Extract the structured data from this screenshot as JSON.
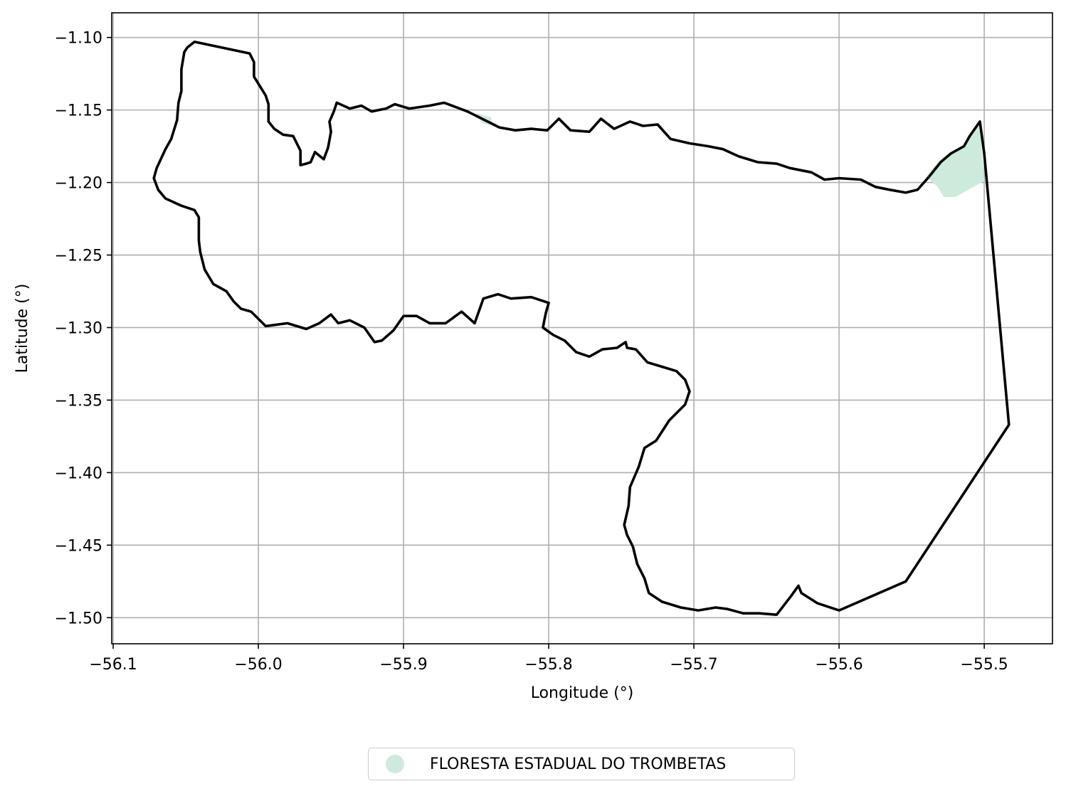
{
  "figure": {
    "xlabel": "Longitude (°)",
    "ylabel": "Latitude (°)",
    "xticks": [
      -56.1,
      -56.0,
      -55.9,
      -55.8,
      -55.7,
      -55.6,
      -55.5
    ],
    "xtick_labels": [
      "−56.1",
      "−56.0",
      "−55.9",
      "−55.8",
      "−55.7",
      "−55.6",
      "−55.5"
    ],
    "yticks": [
      -1.1,
      -1.15,
      -1.2,
      -1.25,
      -1.3,
      -1.35,
      -1.4,
      -1.45,
      -1.5
    ],
    "ytick_labels": [
      "−1.10",
      "−1.15",
      "−1.20",
      "−1.25",
      "−1.30",
      "−1.35",
      "−1.40",
      "−1.45",
      "−1.50"
    ],
    "xlim": [
      -56.101,
      -55.453
    ],
    "ylim": [
      -1.518,
      -1.083
    ],
    "grid": true
  },
  "legend": {
    "label": "FLORESTA ESTADUAL DO TROMBETAS",
    "placement": "bottom-center",
    "color": "#cdebdd"
  },
  "chart_data": {
    "type": "map",
    "layers": [
      {
        "kind": "boundary",
        "color": "#000000",
        "coordinates": [
          [
            -56.044,
            -1.103
          ],
          [
            -56.006,
            -1.111
          ],
          [
            -56.003,
            -1.117
          ],
          [
            -56.003,
            -1.127
          ],
          [
            -55.995,
            -1.14
          ],
          [
            -55.993,
            -1.146
          ],
          [
            -55.993,
            -1.158
          ],
          [
            -55.989,
            -1.163
          ],
          [
            -55.983,
            -1.167
          ],
          [
            -55.976,
            -1.168
          ],
          [
            -55.973,
            -1.174
          ],
          [
            -55.971,
            -1.178
          ],
          [
            -55.971,
            -1.188
          ],
          [
            -55.967,
            -1.187
          ],
          [
            -55.964,
            -1.186
          ],
          [
            -55.961,
            -1.179
          ],
          [
            -55.955,
            -1.184
          ],
          [
            -55.952,
            -1.176
          ],
          [
            -55.95,
            -1.165
          ],
          [
            -55.951,
            -1.158
          ],
          [
            -55.948,
            -1.151
          ],
          [
            -55.946,
            -1.145
          ],
          [
            -55.937,
            -1.149
          ],
          [
            -55.929,
            -1.147
          ],
          [
            -55.922,
            -1.151
          ],
          [
            -55.912,
            -1.149
          ],
          [
            -55.906,
            -1.146
          ],
          [
            -55.896,
            -1.149
          ],
          [
            -55.882,
            -1.147
          ],
          [
            -55.872,
            -1.145
          ],
          [
            -55.856,
            -1.151
          ],
          [
            -55.844,
            -1.157
          ],
          [
            -55.834,
            -1.162
          ],
          [
            -55.823,
            -1.164
          ],
          [
            -55.812,
            -1.163
          ],
          [
            -55.801,
            -1.164
          ],
          [
            -55.793,
            -1.156
          ],
          [
            -55.785,
            -1.164
          ],
          [
            -55.772,
            -1.165
          ],
          [
            -55.764,
            -1.156
          ],
          [
            -55.755,
            -1.163
          ],
          [
            -55.744,
            -1.158
          ],
          [
            -55.735,
            -1.161
          ],
          [
            -55.725,
            -1.16
          ],
          [
            -55.716,
            -1.17
          ],
          [
            -55.703,
            -1.173
          ],
          [
            -55.69,
            -1.175
          ],
          [
            -55.68,
            -1.177
          ],
          [
            -55.669,
            -1.182
          ],
          [
            -55.656,
            -1.186
          ],
          [
            -55.643,
            -1.187
          ],
          [
            -55.634,
            -1.19
          ],
          [
            -55.619,
            -1.193
          ],
          [
            -55.61,
            -1.198
          ],
          [
            -55.6,
            -1.197
          ],
          [
            -55.585,
            -1.198
          ],
          [
            -55.575,
            -1.203
          ],
          [
            -55.565,
            -1.205
          ],
          [
            -55.554,
            -1.207
          ],
          [
            -55.546,
            -1.205
          ],
          [
            -55.538,
            -1.196
          ],
          [
            -55.53,
            -1.186
          ],
          [
            -55.523,
            -1.18
          ],
          [
            -55.514,
            -1.175
          ],
          [
            -55.51,
            -1.168
          ],
          [
            -55.503,
            -1.158
          ],
          [
            -55.5,
            -1.18
          ],
          [
            -55.483,
            -1.367
          ],
          [
            -55.554,
            -1.475
          ],
          [
            -55.6,
            -1.495
          ],
          [
            -55.615,
            -1.49
          ],
          [
            -55.626,
            -1.483
          ],
          [
            -55.628,
            -1.478
          ],
          [
            -55.633,
            -1.485
          ],
          [
            -55.643,
            -1.498
          ],
          [
            -55.655,
            -1.497
          ],
          [
            -55.666,
            -1.497
          ],
          [
            -55.677,
            -1.494
          ],
          [
            -55.685,
            -1.493
          ],
          [
            -55.697,
            -1.495
          ],
          [
            -55.709,
            -1.493
          ],
          [
            -55.722,
            -1.489
          ],
          [
            -55.731,
            -1.483
          ],
          [
            -55.734,
            -1.473
          ],
          [
            -55.739,
            -1.463
          ],
          [
            -55.742,
            -1.451
          ],
          [
            -55.746,
            -1.443
          ],
          [
            -55.748,
            -1.436
          ],
          [
            -55.745,
            -1.423
          ],
          [
            -55.744,
            -1.41
          ],
          [
            -55.738,
            -1.396
          ],
          [
            -55.734,
            -1.383
          ],
          [
            -55.726,
            -1.378
          ],
          [
            -55.717,
            -1.364
          ],
          [
            -55.706,
            -1.353
          ],
          [
            -55.703,
            -1.344
          ],
          [
            -55.706,
            -1.336
          ],
          [
            -55.712,
            -1.33
          ],
          [
            -55.722,
            -1.327
          ],
          [
            -55.732,
            -1.324
          ],
          [
            -55.74,
            -1.315
          ],
          [
            -55.746,
            -1.314
          ],
          [
            -55.747,
            -1.31
          ],
          [
            -55.753,
            -1.314
          ],
          [
            -55.763,
            -1.315
          ],
          [
            -55.772,
            -1.32
          ],
          [
            -55.781,
            -1.317
          ],
          [
            -55.789,
            -1.309
          ],
          [
            -55.797,
            -1.305
          ],
          [
            -55.804,
            -1.3
          ],
          [
            -55.802,
            -1.29
          ],
          [
            -55.8,
            -1.283
          ],
          [
            -55.812,
            -1.279
          ],
          [
            -55.826,
            -1.28
          ],
          [
            -55.835,
            -1.277
          ],
          [
            -55.845,
            -1.28
          ],
          [
            -55.851,
            -1.297
          ],
          [
            -55.86,
            -1.289
          ],
          [
            -55.871,
            -1.297
          ],
          [
            -55.882,
            -1.297
          ],
          [
            -55.891,
            -1.292
          ],
          [
            -55.9,
            -1.292
          ],
          [
            -55.907,
            -1.302
          ],
          [
            -55.915,
            -1.309
          ],
          [
            -55.92,
            -1.31
          ],
          [
            -55.927,
            -1.3
          ],
          [
            -55.937,
            -1.295
          ],
          [
            -55.945,
            -1.297
          ],
          [
            -55.95,
            -1.291
          ],
          [
            -55.958,
            -1.297
          ],
          [
            -55.967,
            -1.301
          ],
          [
            -55.98,
            -1.297
          ],
          [
            -55.995,
            -1.299
          ],
          [
            -56.005,
            -1.289
          ],
          [
            -56.012,
            -1.287
          ],
          [
            -56.017,
            -1.282
          ],
          [
            -56.022,
            -1.275
          ],
          [
            -56.031,
            -1.27
          ],
          [
            -56.037,
            -1.26
          ],
          [
            -56.04,
            -1.248
          ],
          [
            -56.041,
            -1.24
          ],
          [
            -56.041,
            -1.224
          ],
          [
            -56.044,
            -1.219
          ],
          [
            -56.053,
            -1.216
          ],
          [
            -56.064,
            -1.211
          ],
          [
            -56.069,
            -1.205
          ],
          [
            -56.072,
            -1.197
          ],
          [
            -56.07,
            -1.19
          ],
          [
            -56.064,
            -1.177
          ],
          [
            -56.06,
            -1.17
          ],
          [
            -56.056,
            -1.157
          ],
          [
            -56.055,
            -1.145
          ],
          [
            -56.053,
            -1.137
          ],
          [
            -56.053,
            -1.122
          ],
          [
            -56.051,
            -1.11
          ],
          [
            -56.049,
            -1.107
          ],
          [
            -56.044,
            -1.103
          ]
        ]
      },
      {
        "kind": "protected-area",
        "name": "FLORESTA ESTADUAL DO TROMBETAS",
        "color": "#cdebdd",
        "coordinates": [
          [
            -55.54,
            -1.196
          ],
          [
            -55.532,
            -1.186
          ],
          [
            -55.523,
            -1.179
          ],
          [
            -55.514,
            -1.174
          ],
          [
            -55.509,
            -1.166
          ],
          [
            -55.503,
            -1.158
          ],
          [
            -55.5,
            -1.199
          ],
          [
            -55.511,
            -1.205
          ],
          [
            -55.52,
            -1.21
          ],
          [
            -55.528,
            -1.21
          ],
          [
            -55.532,
            -1.203
          ]
        ]
      },
      {
        "kind": "protected-area",
        "name": "FLORESTA ESTADUAL DO TROMBETAS",
        "color": "#cdebdd",
        "coordinates": [
          [
            -55.85,
            -1.152
          ],
          [
            -55.84,
            -1.155
          ],
          [
            -55.838,
            -1.161
          ],
          [
            -55.846,
            -1.159
          ]
        ]
      }
    ]
  }
}
